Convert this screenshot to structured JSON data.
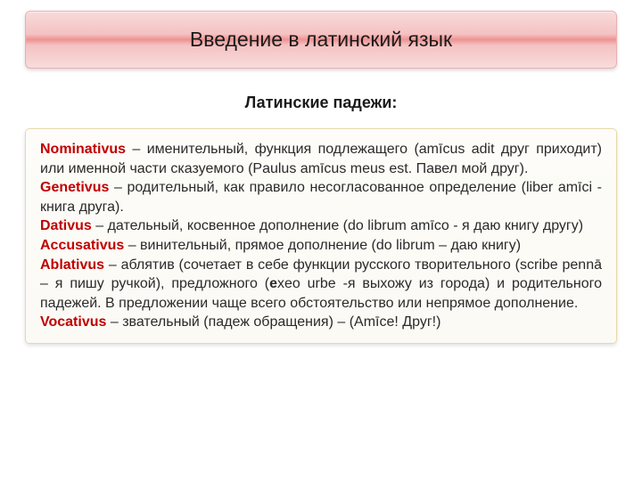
{
  "title": "Введение в латинский язык",
  "subtitle": "Латинские падежи:",
  "cases": [
    {
      "name": "Nominativus",
      "text": " – именительный, функция подлежащего (amīcus adit друг приходит) или именной части сказуемого (Paulus amīcus meus est. Павел мой друг)."
    },
    {
      "name": "Genetivus",
      "text": " – родительный, как правило несогласованное определение (liber amīci - книга друга)."
    },
    {
      "name": "Dativus",
      "text": " – дательный, косвенное дополнение (do librum amīco - я даю книгу другу)"
    },
    {
      "name": "Accusativus",
      "text": " – винительный, прямое дополнение (do librum – даю книгу)"
    },
    {
      "name": "Ablativus",
      "pre": " – аблятив (сочетает в себе функции русского творительного (scribe pennā – я пишу ручкой), предложного (",
      "bold": "e",
      "post": "xeo urbe -я выхожу из города) и родительного падежей. В предложении чаще всего обстоятельство или непрямое дополнение."
    },
    {
      "name": "Vocativus",
      "text": " – звательный (падеж обращения) – (Amīce! Друг!)"
    }
  ],
  "colors": {
    "case_name": "#c00000",
    "title_grad_mid": "#ee9292",
    "title_grad_edge": "#f9dbdb",
    "content_bg": "#fdfcf8",
    "content_border": "#e8d8a8"
  },
  "fonts": {
    "title_size": 23,
    "subtitle_size": 18,
    "body_size": 16
  }
}
